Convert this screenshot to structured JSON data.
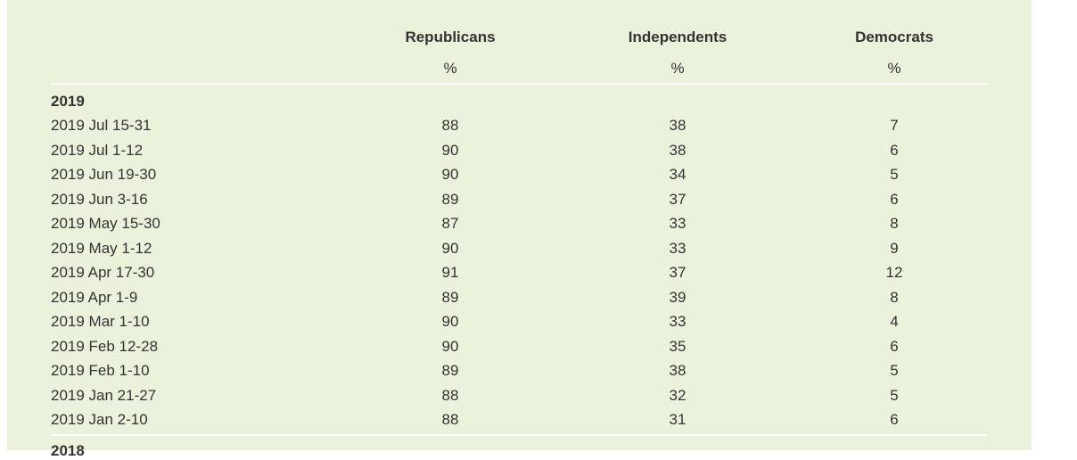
{
  "table": {
    "columns": [
      {
        "label": "Republicans",
        "unit": "%"
      },
      {
        "label": "Independents",
        "unit": "%"
      },
      {
        "label": "Democrats",
        "unit": "%"
      }
    ],
    "groups": [
      {
        "year": "2019",
        "rows": [
          [
            "2019 Jul 15-31",
            "88",
            "38",
            "7"
          ],
          [
            "2019 Jul 1-12",
            "90",
            "38",
            "6"
          ],
          [
            "2019 Jun 19-30",
            "90",
            "34",
            "5"
          ],
          [
            "2019 Jun 3-16",
            "89",
            "37",
            "6"
          ],
          [
            "2019 May 15-30",
            "87",
            "33",
            "8"
          ],
          [
            "2019 May 1-12",
            "90",
            "33",
            "9"
          ],
          [
            "2019 Apr 17-30",
            "91",
            "37",
            "12"
          ],
          [
            "2019 Apr 1-9",
            "89",
            "39",
            "8"
          ],
          [
            "2019 Mar 1-10",
            "90",
            "33",
            "4"
          ],
          [
            "2019 Feb 12-28",
            "90",
            "35",
            "6"
          ],
          [
            "2019 Feb 1-10",
            "89",
            "38",
            "5"
          ],
          [
            "2019 Jan 21-27",
            "88",
            "32",
            "5"
          ],
          [
            "2019 Jan 2-10",
            "88",
            "31",
            "6"
          ]
        ]
      },
      {
        "year": "2018",
        "rows": []
      }
    ]
  },
  "colors": {
    "panel": "#ebf2dc",
    "text": "#333333"
  }
}
